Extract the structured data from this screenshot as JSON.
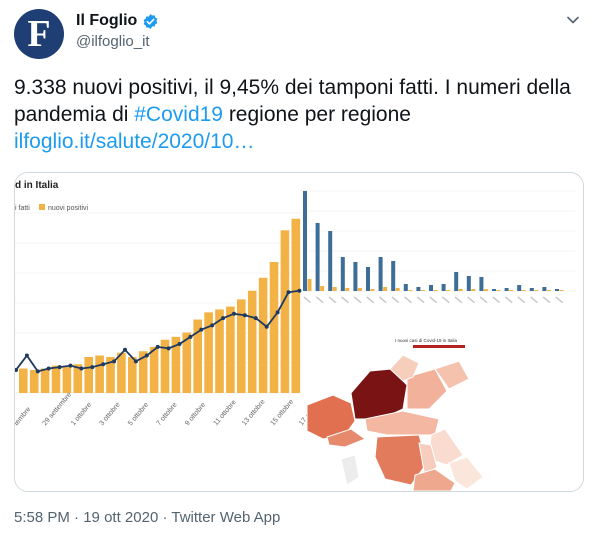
{
  "tweet": {
    "avatar_letter": "F",
    "display_name": "Il Foglio",
    "handle": "@ilfoglio_it",
    "text_main": "9.338 nuovi positivi, il 9,45% dei tamponi fatti. I numeri della pandemia di ",
    "hashtag": "#Covid19",
    "text_after": " regione per regione",
    "link": "ilfoglio.it/salute/2020/10…",
    "time": "5:58 PM",
    "date": "19 ott 2020",
    "source": "Twitter Web App",
    "dot": "·"
  },
  "colors": {
    "avatar_bg": "#1f3f74",
    "link_blue": "#1d9bf0",
    "bar_orange": "#f2b245",
    "line_navy": "#1f3a5f",
    "region_blue": "#3c6e98"
  },
  "media": {
    "chart_title": "d in Italia",
    "legend_prefix": "i fatti",
    "legend_label": "nuovi positivi",
    "map_title": "I nuovi casi di Covid-19 in Italia"
  },
  "chart_data": [
    {
      "type": "bar",
      "title": "d in Italia",
      "series": [
        {
          "name": "nuovi positivi",
          "values": [
            1.7,
            1.6,
            1.7,
            1.9,
            1.8,
            2.0,
            2.5,
            2.6,
            2.5,
            2.8,
            2.5,
            2.9,
            3.2,
            3.7,
            3.9,
            4.2,
            5.1,
            5.6,
            5.8,
            6.0,
            6.5,
            7.1,
            8.0,
            9.1,
            11.3,
            12.1
          ]
        },
        {
          "name": "line",
          "values": [
            1.6,
            2.6,
            1.5,
            1.7,
            1.8,
            1.9,
            1.7,
            1.8,
            2.0,
            2.2,
            3.0,
            2.2,
            2.6,
            3.2,
            3.1,
            3.4,
            3.9,
            4.4,
            4.7,
            5.2,
            5.5,
            5.4,
            5.2,
            4.6,
            5.6,
            7.0,
            7.1
          ]
        }
      ],
      "x_tick_labels": [
        "tembre",
        "29 settembre",
        "1 ottobre",
        "3 ottobre",
        "5 ottobre",
        "7 ottobre",
        "9 ottobre",
        "11 ottobre",
        "13 ottobre",
        "15 ottobre",
        "17 otto"
      ]
    },
    {
      "type": "bar",
      "series": [
        {
          "name": "blue",
          "values": [
            100,
            68,
            60,
            34,
            29,
            24,
            34,
            30,
            7,
            4,
            6,
            7,
            19,
            15,
            14,
            2,
            3,
            6,
            3,
            4,
            2
          ]
        },
        {
          "name": "orange",
          "values": [
            12,
            5,
            4,
            3,
            3,
            2,
            4,
            3,
            1,
            1,
            1,
            1,
            2,
            2,
            2,
            1,
            1,
            1,
            1,
            1,
            1
          ]
        }
      ]
    }
  ]
}
